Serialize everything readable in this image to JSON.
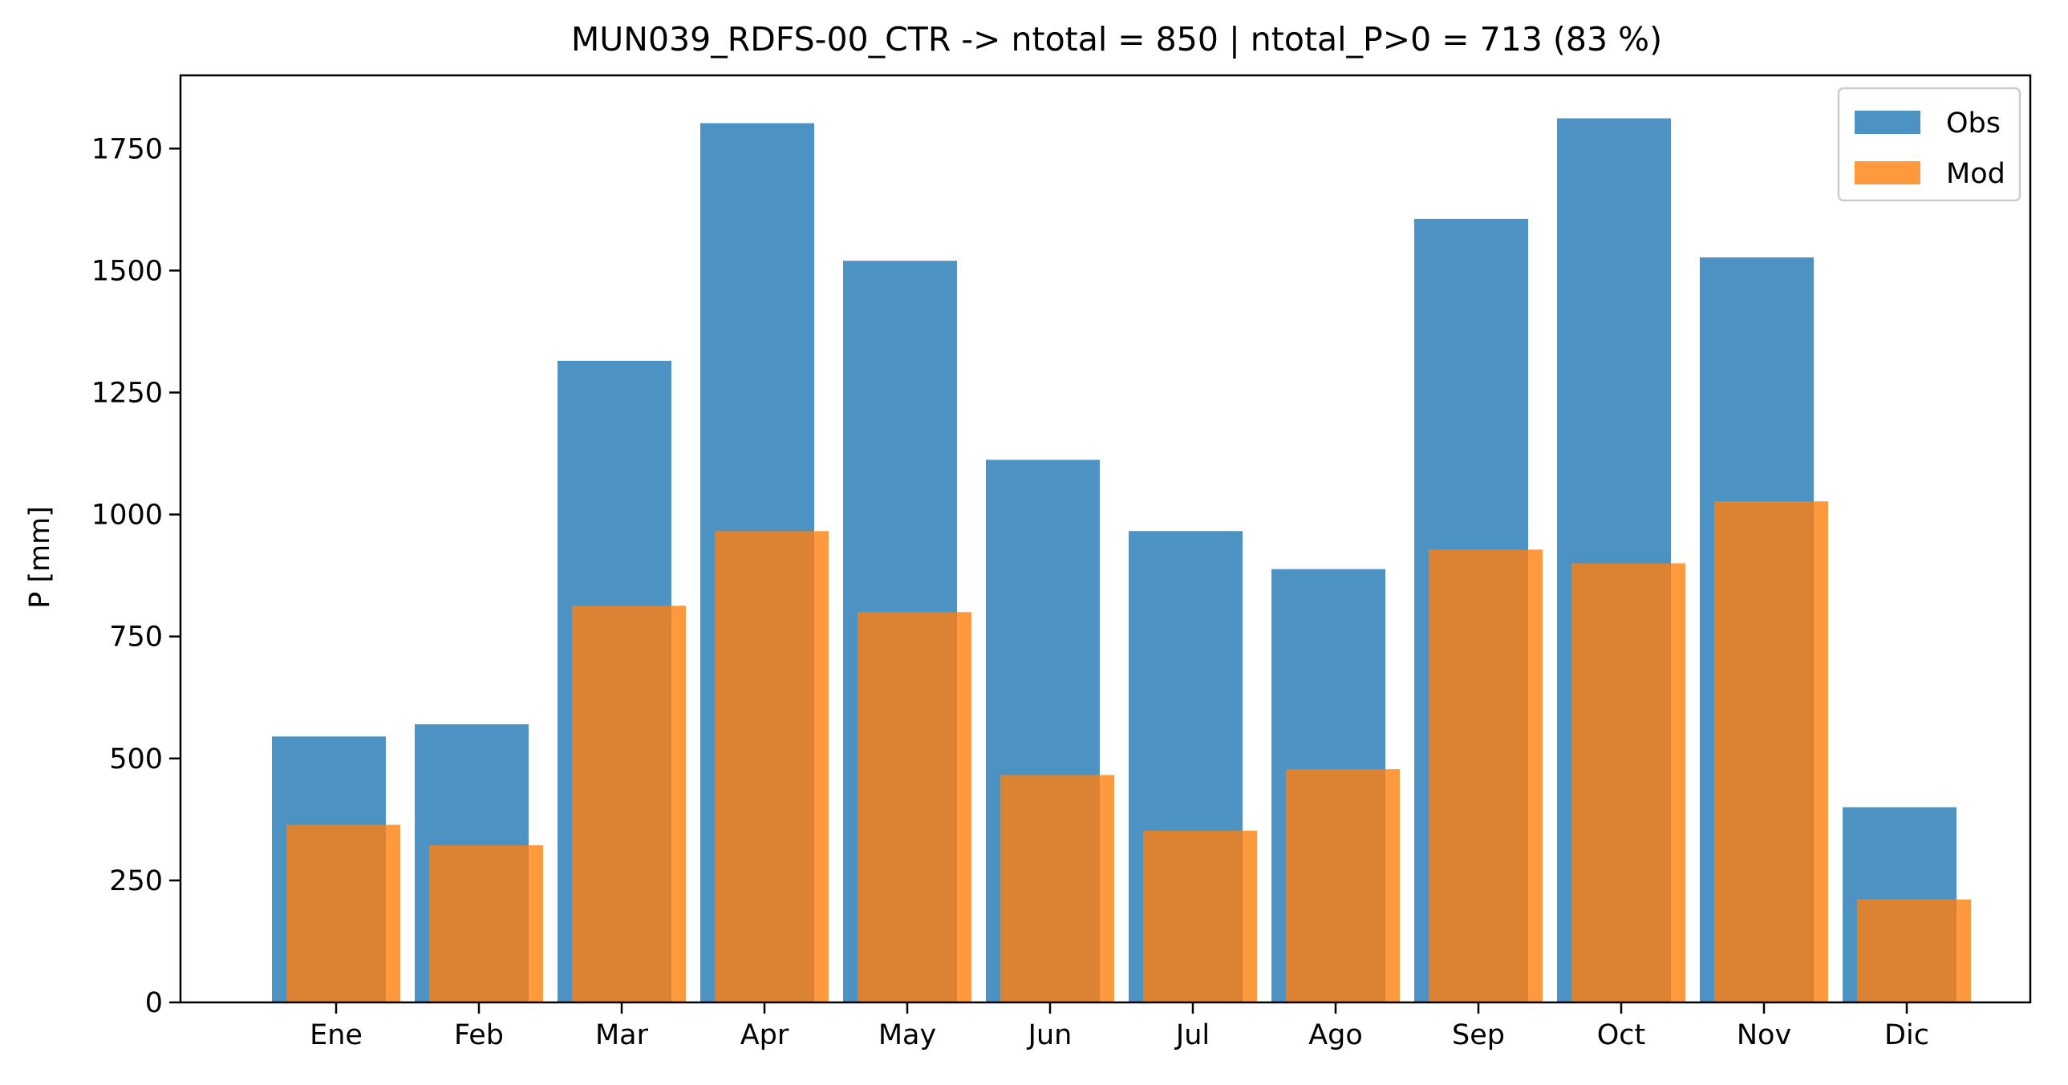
{
  "chart_data": {
    "type": "bar",
    "title": "MUN039_RDFS-00_CTR -> ntotal = 850 | ntotal_P>0 = 713 (83 %)",
    "xlabel": "",
    "ylabel": "P [mm]",
    "ylim": [
      0,
      1900
    ],
    "yticks": [
      0,
      250,
      500,
      750,
      1000,
      1250,
      1500,
      1750
    ],
    "ytick_labels": [
      "0",
      "250",
      "500",
      "750",
      "1000",
      "1250",
      "1500",
      "1750"
    ],
    "categories": [
      "Ene",
      "Feb",
      "Mar",
      "Apr",
      "May",
      "Jun",
      "Jul",
      "Ago",
      "Sep",
      "Oct",
      "Nov",
      "Dic"
    ],
    "series": [
      {
        "name": "Obs",
        "color": "#1f77b4",
        "values": [
          545,
          570,
          1315,
          1802,
          1520,
          1112,
          966,
          888,
          1606,
          1812,
          1527,
          400
        ]
      },
      {
        "name": "Mod",
        "color": "#ff7f0e",
        "values": [
          364,
          322,
          813,
          966,
          800,
          466,
          352,
          478,
          928,
          900,
          1027,
          211
        ]
      }
    ],
    "legend_position": "top-right",
    "grid": false
  }
}
